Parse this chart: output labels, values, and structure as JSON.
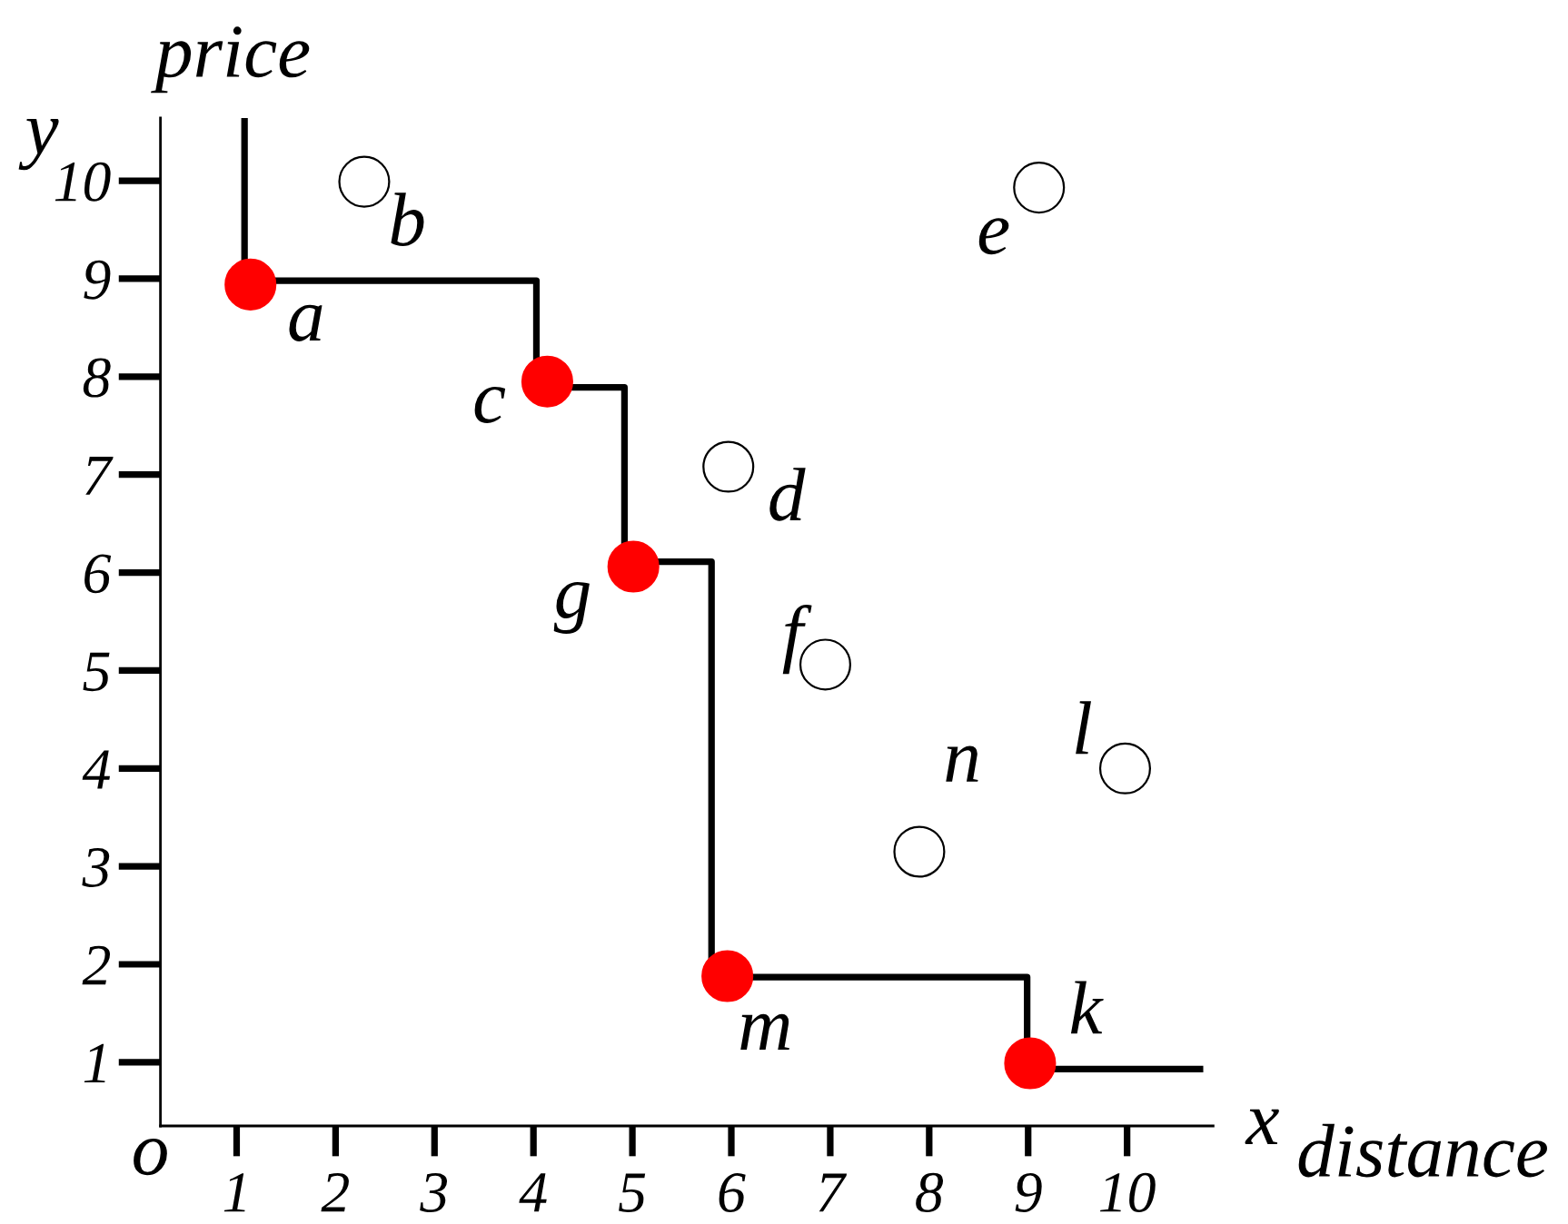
{
  "chart_data": {
    "type": "scatter",
    "xlabel": "distance",
    "ylabel": "price",
    "annotations": [
      "x",
      "y",
      "o"
    ],
    "xlim": [
      0.23,
      10.87
    ],
    "ylim": [
      0.35,
      10.64
    ],
    "xticks": [
      1,
      2,
      3,
      4,
      5,
      6,
      7,
      8,
      9,
      10
    ],
    "yticks": [
      1,
      2,
      3,
      4,
      5,
      6,
      7,
      8,
      9,
      10
    ],
    "series": [
      {
        "type": "step",
        "color": "#000000",
        "x": [
          1.08,
          4.03,
          4.92,
          5.8,
          8.99,
          10.77
        ],
        "values": [
          10.64,
          8.98,
          7.89,
          6.11,
          1.87,
          0.93
        ]
      },
      {
        "color": "#ff0000",
        "marker": "circle",
        "x": [
          1.14,
          4.14,
          5.01,
          5.96,
          9.02
        ],
        "values": [
          8.94,
          7.95,
          6.06,
          1.88,
          0.99
        ],
        "value_labels": [
          "a",
          "c",
          "g",
          "m",
          "k"
        ]
      },
      {
        "color": "#ffffff",
        "marker": "circle",
        "x": [
          2.29,
          5.97,
          9.11,
          6.95,
          7.9,
          9.98
        ],
        "values": [
          9.99,
          7.08,
          9.93,
          5.06,
          3.15,
          4.0
        ],
        "value_labels": [
          "b",
          "d",
          "e",
          "f",
          "n",
          "l"
        ]
      }
    ]
  }
}
